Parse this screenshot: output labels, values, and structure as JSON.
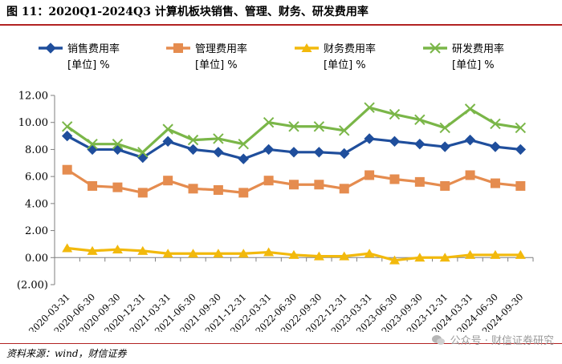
{
  "header": {
    "title": "图 11：2020Q1-2024Q3 计算机板块销售、管理、财务、研发费用率"
  },
  "footer": {
    "source": "资料来源：wind，财信证券",
    "watermark": "公众号 · 财信证券研究"
  },
  "chart_data": {
    "type": "line",
    "categories": [
      "2020-03-31",
      "2020-06-30",
      "2020-09-30",
      "2020-12-31",
      "2021-03-31",
      "2021-06-30",
      "2021-09-30",
      "2021-12-31",
      "2022-03-31",
      "2022-06-30",
      "2022-09-30",
      "2022-12-31",
      "2023-03-31",
      "2023-06-30",
      "2023-09-30",
      "2023-12-31",
      "2024-03-31",
      "2024-06-30",
      "2024-09-30"
    ],
    "series": [
      {
        "name": "销售费用率",
        "unit": "[单位] %",
        "color": "#1f4e9c",
        "marker": "diamond",
        "values": [
          9.0,
          8.0,
          8.0,
          7.4,
          8.6,
          8.0,
          7.8,
          7.3,
          8.0,
          7.8,
          7.8,
          7.7,
          8.8,
          8.6,
          8.4,
          8.2,
          8.7,
          8.2,
          8.0
        ]
      },
      {
        "name": "管理费用率",
        "unit": "[单位] %",
        "color": "#e58c4f",
        "marker": "square",
        "values": [
          6.5,
          5.3,
          5.2,
          4.8,
          5.7,
          5.1,
          5.0,
          4.8,
          5.7,
          5.4,
          5.4,
          5.1,
          6.1,
          5.8,
          5.6,
          5.3,
          6.1,
          5.5,
          5.3
        ]
      },
      {
        "name": "财务费用率",
        "unit": "[单位] %",
        "color": "#f2b90c",
        "marker": "triangle",
        "values": [
          0.7,
          0.5,
          0.6,
          0.5,
          0.3,
          0.3,
          0.3,
          0.3,
          0.4,
          0.2,
          0.1,
          0.1,
          0.3,
          -0.2,
          0.0,
          0.0,
          0.2,
          0.2,
          0.2
        ]
      },
      {
        "name": "研发费用率",
        "unit": "[单位] %",
        "color": "#7ab648",
        "marker": "x",
        "values": [
          9.7,
          8.4,
          8.4,
          7.8,
          9.5,
          8.7,
          8.8,
          8.4,
          10.0,
          9.7,
          9.7,
          9.4,
          11.1,
          10.6,
          10.2,
          9.6,
          11.0,
          9.9,
          9.6
        ]
      }
    ],
    "y_ticks": [
      "12.00",
      "10.00",
      "8.00",
      "6.00",
      "4.00",
      "2.00",
      "0.00",
      "(2.00)"
    ],
    "ylim": [
      -2,
      12
    ],
    "negative_tick_color": "#c00000",
    "legend_position": "top",
    "grid": false
  }
}
